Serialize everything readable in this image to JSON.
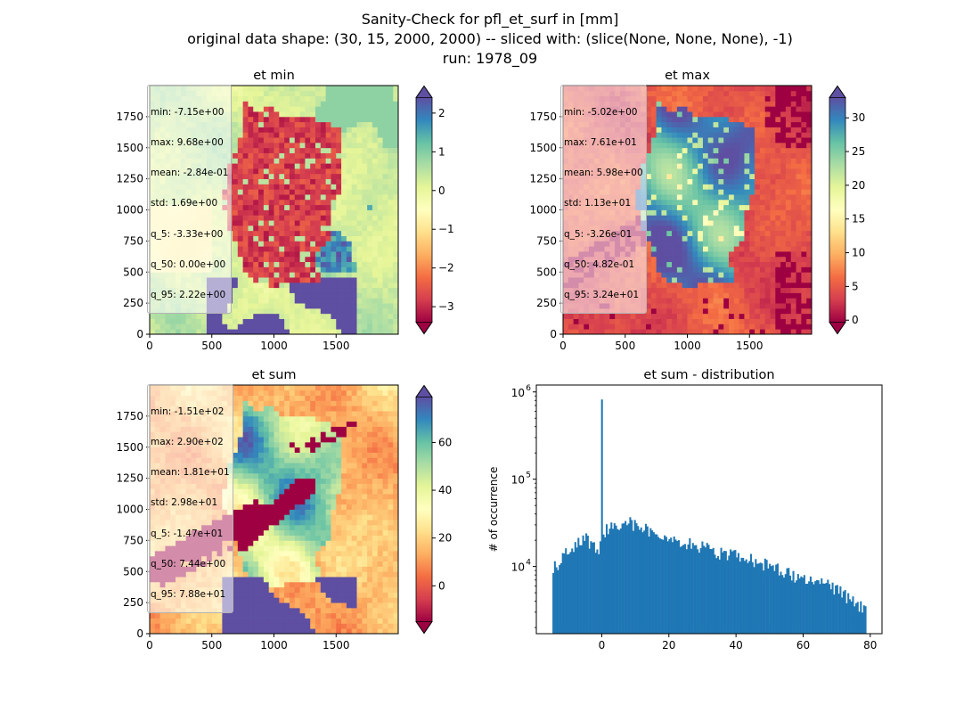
{
  "figure": {
    "title_lines": [
      "Sanity-Check for pfl_et_surf in [mm]",
      "original data shape: (30, 15, 2000, 2000) -- sliced with: (slice(None, None, None), -1)",
      "run: 1978_09"
    ]
  },
  "colormap": "Spectral",
  "chart_data": [
    {
      "type": "heatmap",
      "title": "et min",
      "xlim": [
        0,
        2000
      ],
      "ylim": [
        0,
        2000
      ],
      "x_ticks": [
        0,
        500,
        1000,
        1500
      ],
      "y_ticks": [
        0,
        250,
        500,
        750,
        1000,
        1250,
        1500,
        1750
      ],
      "colorbar": {
        "range": [
          -3.4,
          2.4
        ],
        "ticks": [
          -3,
          -2,
          -1,
          0,
          1,
          2
        ],
        "tick_labels": [
          "−3",
          "−2",
          "−1",
          "0",
          "1",
          "2"
        ],
        "extend": "both"
      },
      "stats": [
        "min: -7.15e+00",
        "max: 9.68e+00",
        "mean: -2.84e-01",
        "std: 1.69e+00",
        "q_5: -3.33e+00",
        "q_50: 0.00e+00",
        "q_95: 2.22e+00"
      ]
    },
    {
      "type": "heatmap",
      "title": "et max",
      "xlim": [
        0,
        2000
      ],
      "ylim": [
        0,
        2000
      ],
      "x_ticks": [
        0,
        500,
        1000,
        1500
      ],
      "y_ticks": [
        0,
        250,
        500,
        750,
        1000,
        1250,
        1500,
        1750
      ],
      "colorbar": {
        "range": [
          -0.3,
          33
        ],
        "ticks": [
          0,
          5,
          10,
          15,
          20,
          25,
          30
        ],
        "tick_labels": [
          "0",
          "5",
          "10",
          "15",
          "20",
          "25",
          "30"
        ],
        "extend": "both"
      },
      "stats": [
        "min: -5.02e+00",
        "max: 7.61e+01",
        "mean: 5.98e+00",
        "std: 1.13e+01",
        "q_5: -3.26e-01",
        "q_50: 4.82e-01",
        "q_95: 3.24e+01"
      ]
    },
    {
      "type": "heatmap",
      "title": "et sum",
      "xlim": [
        0,
        2000
      ],
      "ylim": [
        0,
        2000
      ],
      "x_ticks": [
        0,
        500,
        1000,
        1500
      ],
      "y_ticks": [
        0,
        250,
        500,
        750,
        1000,
        1250,
        1500,
        1750
      ],
      "colorbar": {
        "range": [
          -15,
          79
        ],
        "ticks": [
          0,
          20,
          40,
          60
        ],
        "tick_labels": [
          "0",
          "20",
          "40",
          "60"
        ],
        "extend": "both"
      },
      "stats": [
        "min: -1.51e+02",
        "max: 2.90e+02",
        "mean: 1.81e+01",
        "std: 2.98e+01",
        "q_5: -1.47e+01",
        "q_50: 7.44e+00",
        "q_95: 7.88e+01"
      ]
    },
    {
      "type": "bar",
      "title": "et sum - distribution",
      "ylabel": "# of occurrence",
      "xlabel": "",
      "yscale": "log",
      "xlim": [
        -19.5,
        83.5
      ],
      "ylim": [
        1700,
        1200000
      ],
      "x_ticks": [
        0,
        20,
        40,
        60,
        80
      ],
      "y_ticks": [
        10000,
        100000,
        1000000
      ],
      "y_tick_labels": [
        [
          "10",
          "4"
        ],
        [
          "10",
          "5"
        ],
        [
          "10",
          "6"
        ]
      ],
      "color": "#1f77b4",
      "bin_range": [
        -14.7,
        78.8
      ],
      "spike": {
        "x": 0,
        "count": 820000
      },
      "anchors": [
        [
          -14.7,
          9500
        ],
        [
          -13,
          11000
        ],
        [
          -10,
          15000
        ],
        [
          -5,
          21000
        ],
        [
          -1,
          16000
        ],
        [
          1,
          26000
        ],
        [
          3,
          29000
        ],
        [
          5,
          31000
        ],
        [
          8,
          32000
        ],
        [
          12,
          27000
        ],
        [
          16,
          24000
        ],
        [
          20,
          20000
        ],
        [
          25,
          18500
        ],
        [
          30,
          16500
        ],
        [
          35,
          14500
        ],
        [
          40,
          13500
        ],
        [
          45,
          12000
        ],
        [
          50,
          10000
        ],
        [
          55,
          8500
        ],
        [
          60,
          7500
        ],
        [
          65,
          6500
        ],
        [
          70,
          5500
        ],
        [
          75,
          4000
        ],
        [
          78.8,
          3000
        ]
      ]
    }
  ]
}
